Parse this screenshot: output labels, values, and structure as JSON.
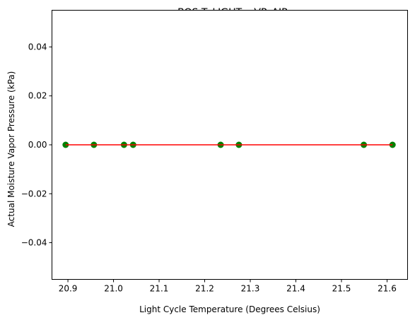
{
  "chart_data": {
    "type": "scatter",
    "title": "BOS T_LIGHT x VP_AIR",
    "xlabel": "Light Cycle Temperature (Degrees Celsius)",
    "ylabel": "Actual Moisture Vapor Pressure (kPa)",
    "xlim": [
      20.865,
      21.645
    ],
    "ylim": [
      -0.055,
      0.055
    ],
    "xticks": [
      20.9,
      21.0,
      21.1,
      21.2,
      21.3,
      21.4,
      21.5,
      21.6
    ],
    "xtick_labels": [
      "20.9",
      "21.0",
      "21.1",
      "21.2",
      "21.3",
      "21.4",
      "21.5",
      "21.6"
    ],
    "yticks": [
      -0.04,
      -0.02,
      0.0,
      0.02,
      0.04
    ],
    "ytick_labels": [
      "−0.04",
      "−0.02",
      "0.00",
      "0.02",
      "0.04"
    ],
    "grid": false,
    "legend": "none",
    "series": [
      {
        "kind": "scatter",
        "color": "#008000",
        "points": [
          {
            "x": 20.895,
            "y": 0.0
          },
          {
            "x": 20.957,
            "y": 0.0
          },
          {
            "x": 21.023,
            "y": 0.0
          },
          {
            "x": 21.043,
            "y": 0.0
          },
          {
            "x": 21.235,
            "y": 0.0
          },
          {
            "x": 21.275,
            "y": 0.0
          },
          {
            "x": 21.549,
            "y": 0.0
          },
          {
            "x": 21.612,
            "y": 0.0
          }
        ]
      },
      {
        "kind": "line",
        "color": "#ff0000",
        "points": [
          {
            "x": 20.895,
            "y": 0.0
          },
          {
            "x": 21.612,
            "y": 0.0
          }
        ]
      }
    ]
  }
}
